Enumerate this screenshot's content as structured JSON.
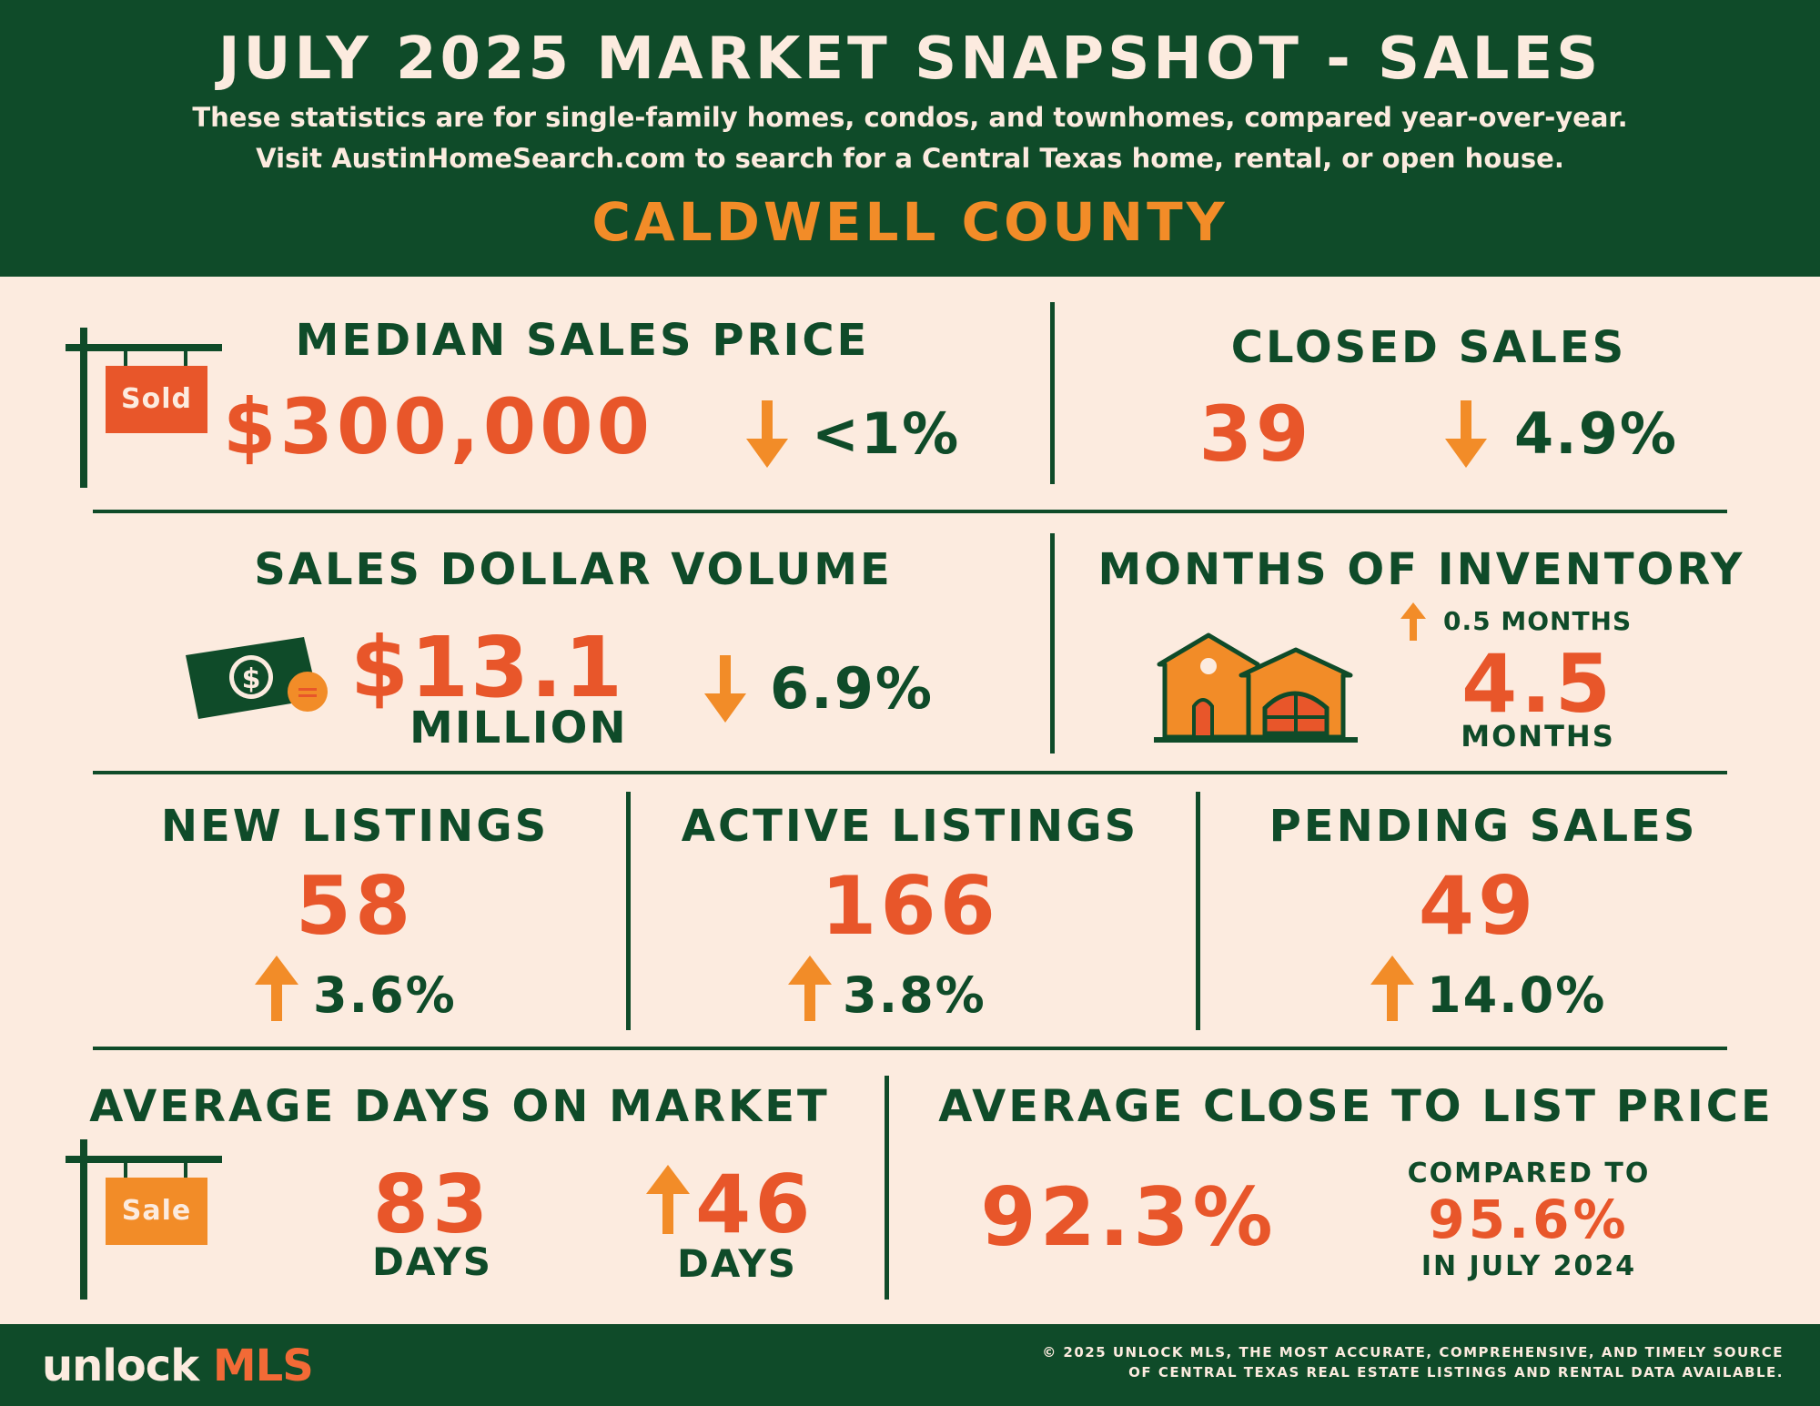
{
  "header": {
    "title": "JULY 2025 MARKET SNAPSHOT - SALES",
    "subtitle_1": "These statistics are for single-family homes, condos, and townhomes, compared year-over-year.",
    "subtitle_2": "Visit AustinHomeSearch.com to search for a Central Texas home, rental, or open house.",
    "county": "CALDWELL COUNTY"
  },
  "colors": {
    "dark_green": "#0f4b29",
    "cream": "#fcebdf",
    "orange_red": "#e8562a",
    "orange": "#f28c28"
  },
  "median_sales_price": {
    "label": "MEDIAN SALES PRICE",
    "sign_text": "Sold",
    "value": "$300,000",
    "change_direction": "down",
    "change": "<1%",
    "icon": "sold-sign-icon"
  },
  "closed_sales": {
    "label": "CLOSED SALES",
    "value": "39",
    "change_direction": "down",
    "change": "4.9%"
  },
  "sales_dollar_volume": {
    "label": "SALES DOLLAR VOLUME",
    "value": "$13.1",
    "unit": "MILLION",
    "change_direction": "down",
    "change": "6.9%",
    "icon": "money-icon"
  },
  "months_of_inventory": {
    "label": "MONTHS OF INVENTORY",
    "change_direction": "up",
    "change": "0.5 MONTHS",
    "value": "4.5",
    "unit": "MONTHS",
    "icon": "house-icon"
  },
  "new_listings": {
    "label": "NEW LISTINGS",
    "value": "58",
    "change_direction": "up",
    "change": "3.6%"
  },
  "active_listings": {
    "label": "ACTIVE LISTINGS",
    "value": "166",
    "change_direction": "up",
    "change": "3.8%"
  },
  "pending_sales": {
    "label": "PENDING SALES",
    "value": "49",
    "change_direction": "up",
    "change": "14.0%"
  },
  "days_on_market": {
    "label": "AVERAGE DAYS ON MARKET",
    "sign_text": "Sale",
    "value": "83",
    "unit": "DAYS",
    "change_direction": "up",
    "change": "46",
    "change_unit": "DAYS",
    "icon": "sale-sign-icon"
  },
  "close_to_list": {
    "label": "AVERAGE CLOSE TO LIST PRICE",
    "value": "92.3%",
    "compared_label": "COMPARED TO",
    "compared_value": "95.6%",
    "compared_period": "IN JULY 2024"
  },
  "footer": {
    "logo_prefix": "unlock",
    "logo_suffix": "MLS",
    "copyright_1": "© 2025 UNLOCK MLS, THE MOST ACCURATE, COMPREHENSIVE, AND TIMELY SOURCE",
    "copyright_2": "OF CENTRAL TEXAS REAL ESTATE LISTINGS AND RENTAL DATA AVAILABLE."
  }
}
